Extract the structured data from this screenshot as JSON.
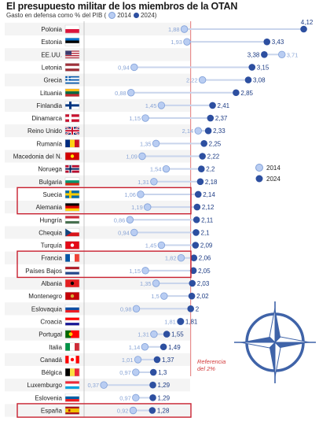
{
  "header": {
    "title": "El presupuesto militar de los miembros de la OTAN",
    "subtitle_prefix": "Gasto en defensa como % del PIB (",
    "subtitle_2014": "2014",
    "subtitle_2024": "2024",
    "subtitle_suffix": ")"
  },
  "legend": {
    "label_2014": "2014",
    "label_2024": "2024"
  },
  "reference": {
    "line1": "Referencia",
    "line2": "del 2%",
    "value": 2
  },
  "colors": {
    "dot_2014": "#b9cdf2",
    "dot_2014_stroke": "#7f9fd8",
    "dot_2024": "#2d4fa0",
    "connector": "#c9d5ec",
    "reference_line": "#e06666",
    "highlight_box": "#c8202f"
  },
  "chart_data": {
    "type": "dot",
    "title": "El presupuesto militar de los miembros de la OTAN",
    "subtitle": "Gasto en defensa como % del PIB",
    "categories": [
      "Polonia",
      "Estonia",
      "EE.UU.",
      "Letonia",
      "Grecia",
      "Lituania",
      "Finlandia",
      "Dinamarca",
      "Reino Unido",
      "Rumanía",
      "Macedonia del N.",
      "Noruega",
      "Bulgaria",
      "Suecia",
      "Alemania",
      "Hungría",
      "Chequia",
      "Turquía",
      "Francia",
      "Países Bajos",
      "Albania",
      "Montenegro",
      "Eslovaquia",
      "Croacia",
      "Portugal",
      "Italia",
      "Canadá",
      "Bélgica",
      "Luxemburgo",
      "Eslovenia",
      "España"
    ],
    "series": [
      {
        "name": "2014",
        "values": [
          1.88,
          1.93,
          3.71,
          0.94,
          2.22,
          0.88,
          1.45,
          1.15,
          2.14,
          1.35,
          1.09,
          1.54,
          1.31,
          1.06,
          1.19,
          0.86,
          0.94,
          1.45,
          1.82,
          1.15,
          1.35,
          1.5,
          0.98,
          1.81,
          1.31,
          1.14,
          1.01,
          0.97,
          0.37,
          0.97,
          0.92
        ]
      },
      {
        "name": "2024",
        "values": [
          4.12,
          3.43,
          3.38,
          3.15,
          3.08,
          2.85,
          2.41,
          2.37,
          2.33,
          2.25,
          2.22,
          2.2,
          2.18,
          2.14,
          2.12,
          2.11,
          2.1,
          2.09,
          2.06,
          2.05,
          2.03,
          2.02,
          2,
          1.81,
          1.55,
          1.49,
          1.37,
          1.3,
          1.29,
          1.29,
          1.28
        ]
      }
    ],
    "value_labels_2014": [
      "1,88",
      "1,93",
      "3,71",
      "0,94",
      "2,22",
      "0,88",
      "1,45",
      "1,15",
      "2,14",
      "1,35",
      "1,09",
      "1,54",
      "1,31",
      "1,06",
      "1,19",
      "0,86",
      "0,94",
      "1,45",
      "1,82",
      "1,15",
      "1,35",
      "1,5",
      "0,98",
      "1,81",
      "1,31",
      "1,14",
      "1,01",
      "0,97",
      "0,37",
      "0,97",
      "0,92"
    ],
    "value_labels_2024": [
      "4,12",
      "3,43",
      "3,38",
      "3,15",
      "3,08",
      "2,85",
      "2,41",
      "2,37",
      "2,33",
      "2,25",
      "2,22",
      "2,2",
      "2,18",
      "2,14",
      "2,12",
      "2,11",
      "2,1",
      "2,09",
      "2,06",
      "2,05",
      "2,03",
      "2,02",
      "2",
      "1,81",
      "1,55",
      "1,49",
      "1,37",
      "1,3",
      "1,29",
      "1,29",
      "1,28"
    ],
    "highlighted_groups": [
      [
        "Suecia",
        "Alemania"
      ],
      [
        "Francia",
        "Países Bajos"
      ],
      [
        "España"
      ]
    ],
    "reference_value": 2,
    "xlim": [
      0,
      4.2
    ]
  }
}
